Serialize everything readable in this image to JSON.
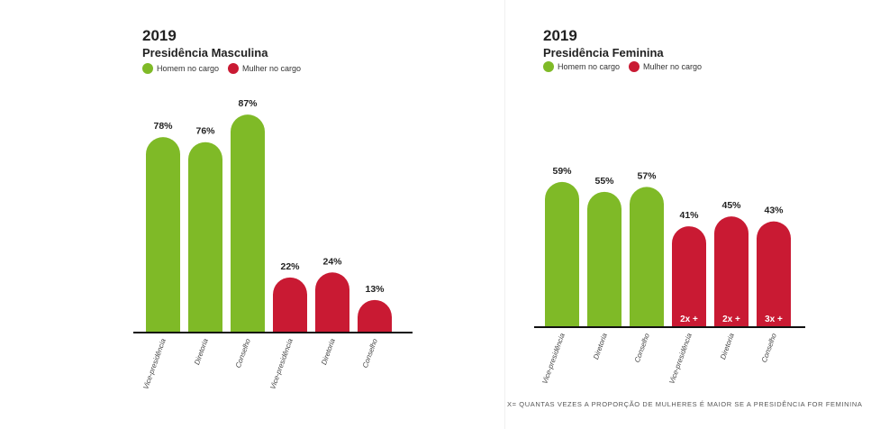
{
  "colors": {
    "male": "#7fba27",
    "female": "#c91a33",
    "axis": "#111111"
  },
  "chart_data": [
    {
      "type": "bar",
      "year": "2019",
      "title": "Presidência Masculina",
      "legend": [
        "Homem no cargo",
        "Mulher no cargo"
      ],
      "categories": [
        "Vice-presidência",
        "Diretoria",
        "Conselho",
        "Vice-presidência",
        "Diretoria",
        "Conselho"
      ],
      "values": [
        78,
        76,
        87,
        22,
        24,
        13
      ],
      "value_labels": [
        "78%",
        "76%",
        "87%",
        "22%",
        "24%",
        "13%"
      ],
      "groups": [
        "Homem no cargo",
        "Homem no cargo",
        "Homem no cargo",
        "Mulher no cargo",
        "Mulher no cargo",
        "Mulher no cargo"
      ],
      "inner_labels": [
        "",
        "",
        "",
        "",
        "",
        ""
      ],
      "ylim": [
        0,
        100
      ]
    },
    {
      "type": "bar",
      "year": "2019",
      "title": "Presidência Feminina",
      "legend": [
        "Homem no cargo",
        "Mulher no cargo"
      ],
      "categories": [
        "Vice-presidência",
        "Diretoria",
        "Conselho",
        "Vice-presidência",
        "Diretoria",
        "Conselho"
      ],
      "values": [
        59,
        55,
        57,
        41,
        45,
        43
      ],
      "value_labels": [
        "59%",
        "55%",
        "57%",
        "41%",
        "45%",
        "43%"
      ],
      "groups": [
        "Homem no cargo",
        "Homem no cargo",
        "Homem no cargo",
        "Mulher no cargo",
        "Mulher no cargo",
        "Mulher no cargo"
      ],
      "inner_labels": [
        "",
        "",
        "",
        "2x +",
        "2x +",
        "3x +"
      ],
      "ylim": [
        0,
        100
      ]
    }
  ],
  "footnote": "X= QUANTAS VEZES A PROPORÇÃO DE MULHERES É MAIOR SE A PRESIDÊNCIA FOR FEMININA"
}
